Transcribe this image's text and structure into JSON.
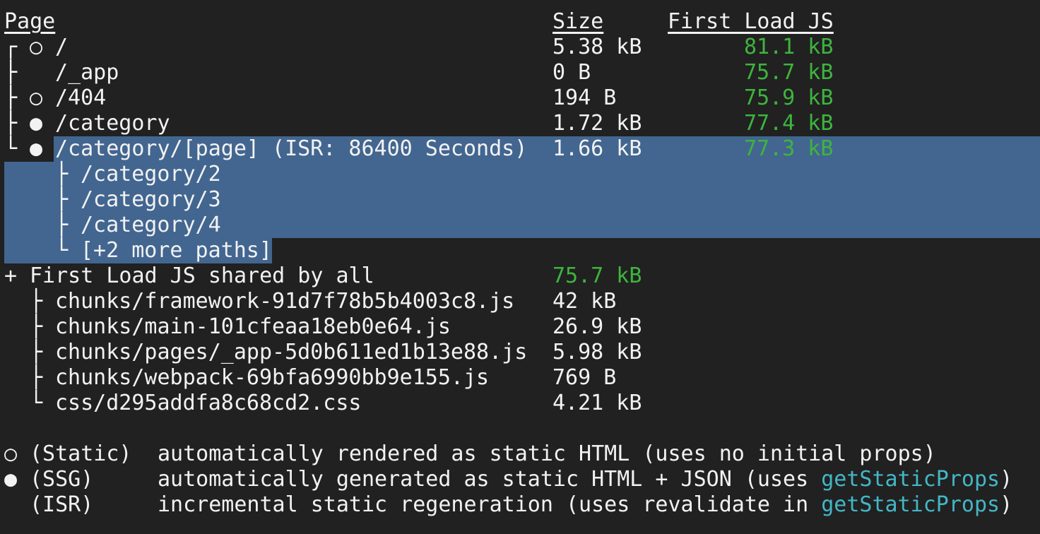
{
  "colors": {
    "background": "#212121",
    "foreground": "#f2f2f2",
    "green": "#3eb43e",
    "cyan": "#43b7c6",
    "selection_blue": "#426690"
  },
  "header": {
    "page": "Page",
    "size": "Size",
    "first_load_js": "First Load JS"
  },
  "routes": [
    {
      "tree": "┌",
      "bullet": "○",
      "path": "/",
      "size": "5.38 kB",
      "first_load": "81.1 kB"
    },
    {
      "tree": "├",
      "bullet": " ",
      "path": "/_app",
      "size": "0 B",
      "first_load": "75.7 kB"
    },
    {
      "tree": "├",
      "bullet": "○",
      "path": "/404",
      "size": "194 B",
      "first_load": "75.9 kB"
    },
    {
      "tree": "├",
      "bullet": "●",
      "path": "/category",
      "size": "1.72 kB",
      "first_load": "77.4 kB"
    },
    {
      "tree": "└",
      "bullet": "●",
      "path": "/category/[page] (ISR: 86400 Seconds)",
      "size": "1.66 kB",
      "first_load": "77.3 kB",
      "selected": true
    }
  ],
  "isr_paths": [
    {
      "tree": "├",
      "path": "/category/2",
      "selected": true
    },
    {
      "tree": "├",
      "path": "/category/3",
      "selected": true
    },
    {
      "tree": "├",
      "path": "/category/4",
      "selected": true
    },
    {
      "tree": "└",
      "path": "[+2 more paths]",
      "selected": true
    }
  ],
  "shared": {
    "prefix": "+",
    "label": "First Load JS shared by all",
    "size": "75.7 kB"
  },
  "chunks": [
    {
      "tree": "├",
      "file": "chunks/framework-91d7f78b5b4003c8.js",
      "size": "42 kB"
    },
    {
      "tree": "├",
      "file": "chunks/main-101cfeaa18eb0e64.js",
      "size": "26.9 kB"
    },
    {
      "tree": "├",
      "file": "chunks/pages/_app-5d0b611ed1b13e88.js",
      "size": "5.98 kB"
    },
    {
      "tree": "├",
      "file": "chunks/webpack-69bfa6990bb9e155.js",
      "size": "769 B"
    },
    {
      "tree": "└",
      "file": "css/d295addfa8c68cd2.css",
      "size": "4.21 kB"
    }
  ],
  "legend": [
    {
      "symbol": "○",
      "label": "(Static)",
      "text_before": "automatically rendered as static HTML (uses no initial props)",
      "code": "",
      "text_after": ""
    },
    {
      "symbol": "●",
      "label": "(SSG)",
      "text_before": "automatically generated as static HTML + JSON (uses ",
      "code": "getStaticProps",
      "text_after": ")"
    },
    {
      "symbol": " ",
      "label": "(ISR)",
      "text_before": "incremental static regeneration (uses revalidate in ",
      "code": "getStaticProps",
      "text_after": ")"
    }
  ]
}
